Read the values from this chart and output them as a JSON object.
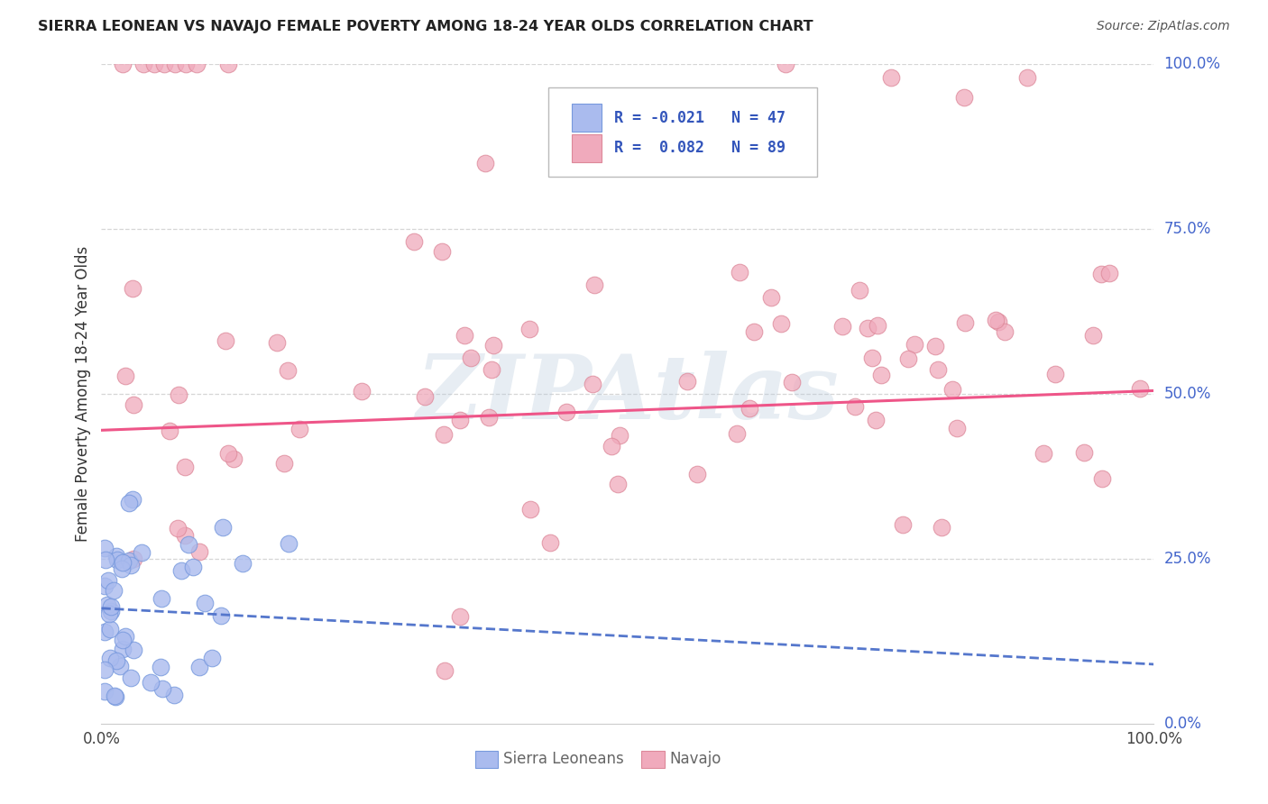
{
  "title": "SIERRA LEONEAN VS NAVAJO FEMALE POVERTY AMONG 18-24 YEAR OLDS CORRELATION CHART",
  "source": "Source: ZipAtlas.com",
  "ylabel": "Female Poverty Among 18-24 Year Olds",
  "watermark": "ZIPAtlas",
  "background_color": "#ffffff",
  "sierra_color_fill": "#aabbee",
  "sierra_color_edge": "#7799dd",
  "navajo_color_fill": "#f0aabc",
  "navajo_color_edge": "#dd8899",
  "sierra_trend_color": "#5577cc",
  "navajo_trend_color": "#ee5588",
  "grid_color": "#cccccc",
  "right_label_color": "#4466cc",
  "title_color": "#222222",
  "source_color": "#555555",
  "legend_box_color": "#eeeeee",
  "legend_text_color": "#3355bb",
  "bottom_legend_color": "#666666",
  "sierra_R": -0.021,
  "sierra_N": 47,
  "navajo_R": 0.082,
  "navajo_N": 89,
  "sierra_intercept": 0.175,
  "sierra_slope": -0.085,
  "navajo_intercept": 0.445,
  "navajo_slope": 0.06,
  "ytick_positions": [
    0.0,
    0.25,
    0.5,
    0.75,
    1.0
  ],
  "ytick_labels": [
    "0.0%",
    "25.0%",
    "50.0%",
    "75.0%",
    "100.0%"
  ]
}
